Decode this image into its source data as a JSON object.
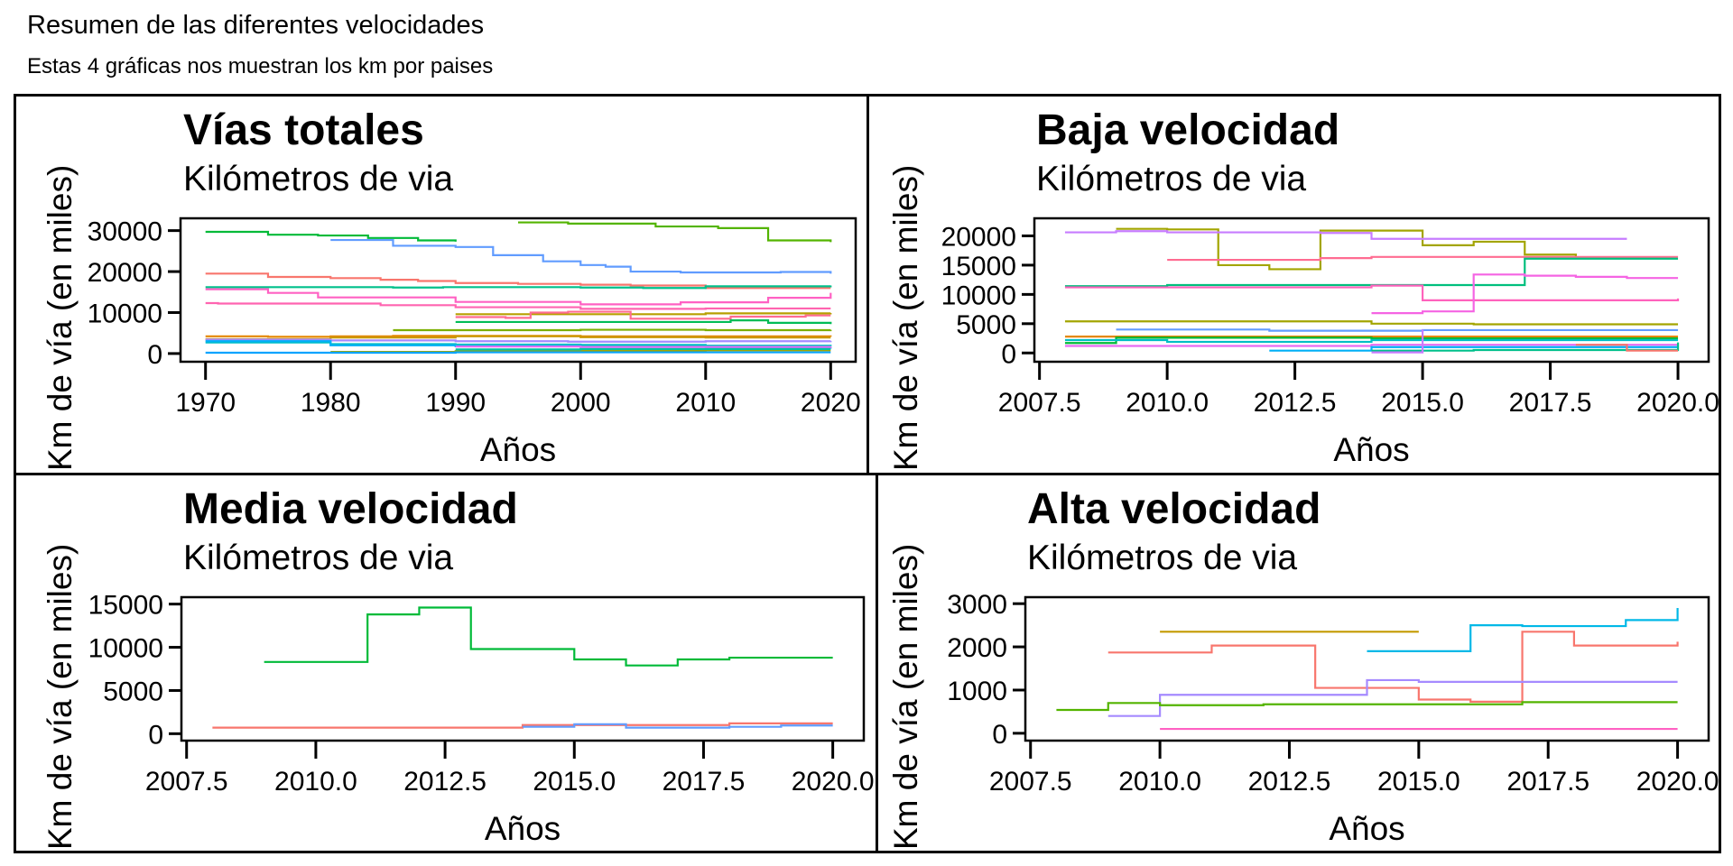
{
  "header": {
    "title": "Resumen de las diferentes velocidades",
    "subtitle": "Estas 4 gráficas nos muestran los km por paises"
  },
  "chart_data": [
    {
      "type": "line",
      "step": true,
      "title": "Vías totales",
      "subtitle": "Kilómetros de via",
      "xlabel": "Años",
      "ylabel": "Km de vía (en miles)",
      "xlim": [
        1968,
        2022
      ],
      "ylim": [
        -2000,
        33000
      ],
      "xticks": [
        1970,
        1980,
        1990,
        2000,
        2010,
        2020
      ],
      "xtick_labels": [
        "1970",
        "1980",
        "1990",
        "2000",
        "2010",
        "2020"
      ],
      "yticks": [
        0,
        10000,
        20000,
        30000
      ],
      "ytick_labels": [
        "0",
        "10000",
        "20000",
        "30000"
      ],
      "legend": "none",
      "series": [
        {
          "color": "#00BA38",
          "x": [
            1970,
            1975,
            1979,
            1983,
            1987,
            1990
          ],
          "y": [
            29700,
            29000,
            28800,
            28200,
            27600,
            27300
          ]
        },
        {
          "color": "#619CFF",
          "x": [
            1980,
            1985,
            1990,
            1993,
            1997,
            2000,
            2002,
            2004,
            2008,
            2016,
            2020
          ],
          "y": [
            27700,
            26300,
            26000,
            24000,
            22500,
            21600,
            21200,
            20000,
            19800,
            19900,
            19500
          ]
        },
        {
          "color": "#53B400",
          "x": [
            1995,
            1999,
            2006,
            2011,
            2015,
            2020
          ],
          "y": [
            32000,
            31700,
            31000,
            30600,
            27600,
            27200
          ]
        },
        {
          "color": "#F8766D",
          "x": [
            1970,
            1975,
            1980,
            1984,
            1987,
            1990,
            1995,
            2000,
            2004,
            2010,
            2020
          ],
          "y": [
            19500,
            18700,
            18400,
            18000,
            17700,
            17200,
            17000,
            16800,
            16600,
            16000,
            16000
          ]
        },
        {
          "color": "#00C08B",
          "x": [
            1970,
            1980,
            1985,
            1989,
            2000,
            2005,
            2010,
            2020
          ],
          "y": [
            16200,
            16200,
            16100,
            16200,
            16100,
            16000,
            16400,
            16600
          ]
        },
        {
          "color": "#FF61C3",
          "x": [
            1970,
            1975,
            1979,
            1990,
            2000,
            2008,
            2015,
            2020
          ],
          "y": [
            15700,
            14800,
            13700,
            12600,
            12000,
            12500,
            13600,
            14800
          ]
        },
        {
          "color": "#FF64B0",
          "x": [
            1970,
            1971,
            1980,
            1984,
            1990,
            2000,
            2010,
            2020
          ],
          "y": [
            12300,
            12200,
            12200,
            11800,
            11300,
            10900,
            11000,
            11000
          ]
        },
        {
          "color": "#B79F00",
          "x": [
            1990,
            2000,
            2010,
            2020
          ],
          "y": [
            9600,
            9600,
            9800,
            9900
          ]
        },
        {
          "color": "#FF6C91",
          "x": [
            1990,
            1994,
            1996,
            1999,
            2004,
            2012,
            2018,
            2020
          ],
          "y": [
            8900,
            8700,
            10000,
            10200,
            8500,
            9000,
            9300,
            9300
          ]
        },
        {
          "color": "#00BC56",
          "x": [
            1990,
            2008,
            2012,
            2015,
            2020
          ],
          "y": [
            7700,
            7700,
            8100,
            7500,
            7200
          ]
        },
        {
          "color": "#7CAE00",
          "x": [
            1985,
            2000,
            2010,
            2020
          ],
          "y": [
            5700,
            5800,
            5700,
            5800
          ]
        },
        {
          "color": "#E58700",
          "x": [
            1970,
            1975,
            1980,
            1985,
            2000,
            2010,
            2020
          ],
          "y": [
            4200,
            4100,
            4200,
            4300,
            4200,
            4200,
            4100
          ]
        },
        {
          "color": "#C99800",
          "x": [
            1970,
            1980,
            1990,
            2000,
            2010,
            2020
          ],
          "y": [
            3500,
            3900,
            4200,
            4000,
            3900,
            3900
          ]
        },
        {
          "color": "#A58AFF",
          "x": [
            1970,
            1980,
            1990,
            1999,
            2010,
            2020
          ],
          "y": [
            3400,
            3200,
            3000,
            2900,
            3000,
            3100
          ]
        },
        {
          "color": "#00BFC4",
          "x": [
            1970,
            1980,
            1990,
            2000,
            2010,
            2020
          ],
          "y": [
            2700,
            2300,
            2200,
            2100,
            1900,
            1800
          ]
        },
        {
          "color": "#00B0F6",
          "x": [
            1970,
            1980,
            1990,
            2000,
            2010,
            2020
          ],
          "y": [
            3000,
            2000,
            1800,
            1600,
            1400,
            1200
          ]
        },
        {
          "color": "#A3A500",
          "x": [
            1980,
            1990,
            2000,
            2010,
            2020
          ],
          "y": [
            400,
            600,
            700,
            800,
            800
          ]
        },
        {
          "color": "#06A4FF",
          "x": [
            1970,
            1980,
            1990,
            2000,
            2010,
            2020
          ],
          "y": [
            200,
            200,
            300,
            300,
            300,
            300
          ]
        },
        {
          "color": "#E76BF3",
          "x": [
            1990,
            2000,
            2010,
            2020
          ],
          "y": [
            1700,
            1600,
            1600,
            1700
          ]
        },
        {
          "color": "#00C1A3",
          "x": [
            1990,
            2000,
            2010,
            2020
          ],
          "y": [
            1000,
            1100,
            1100,
            1100
          ]
        }
      ]
    },
    {
      "type": "line",
      "step": true,
      "title": "Baja velocidad",
      "subtitle": "Kilómetros de via",
      "xlabel": "Años",
      "ylabel": "Km de vía (en miles)",
      "xlim": [
        2007.4,
        2020.6
      ],
      "ylim": [
        -1500,
        23000
      ],
      "xticks": [
        2007.5,
        2010,
        2012.5,
        2015,
        2017.5,
        2020
      ],
      "xtick_labels": [
        "2007.5",
        "2010.0",
        "2012.5",
        "2015.0",
        "2017.5",
        "2020.0"
      ],
      "yticks": [
        0,
        5000,
        10000,
        15000,
        20000
      ],
      "ytick_labels": [
        "0",
        "5000",
        "10000",
        "15000",
        "20000"
      ],
      "legend": "none",
      "series": [
        {
          "color": "#A3A500",
          "x": [
            2009,
            2010,
            2011,
            2012,
            2013,
            2015,
            2016,
            2017,
            2018
          ],
          "y": [
            21200,
            21100,
            15000,
            14300,
            20900,
            18400,
            19000,
            16800,
            16400
          ]
        },
        {
          "color": "#C77CFF",
          "x": [
            2008,
            2009,
            2010,
            2013,
            2014,
            2019
          ],
          "y": [
            20600,
            20800,
            20600,
            20500,
            19500,
            19500
          ]
        },
        {
          "color": "#FF6C91",
          "x": [
            2010,
            2013,
            2014,
            2020
          ],
          "y": [
            15900,
            16200,
            16400,
            16400
          ]
        },
        {
          "color": "#00BF7D",
          "x": [
            2008,
            2010,
            2014,
            2017,
            2020
          ],
          "y": [
            11400,
            11600,
            11600,
            16100,
            16100
          ]
        },
        {
          "color": "#FF62BC",
          "x": [
            2008,
            2014,
            2015,
            2020
          ],
          "y": [
            11200,
            11500,
            9000,
            9300
          ]
        },
        {
          "color": "#F564E3",
          "x": [
            2014,
            2015,
            2016,
            2017,
            2018,
            2019,
            2020
          ],
          "y": [
            6800,
            7100,
            13400,
            13200,
            13000,
            12800,
            12800
          ]
        },
        {
          "color": "#A3A500",
          "x": [
            2008,
            2014,
            2016,
            2020
          ],
          "y": [
            5400,
            5000,
            4900,
            4900
          ]
        },
        {
          "color": "#619CFF",
          "x": [
            2009,
            2012,
            2015,
            2020
          ],
          "y": [
            4000,
            3800,
            3900,
            3900
          ]
        },
        {
          "color": "#E58700",
          "x": [
            2008,
            2020
          ],
          "y": [
            2800,
            2800
          ]
        },
        {
          "color": "#00BA38",
          "x": [
            2008,
            2009,
            2014,
            2020
          ],
          "y": [
            1700,
            2600,
            2500,
            2500
          ]
        },
        {
          "color": "#00BFC4",
          "x": [
            2008,
            2010,
            2014,
            2020
          ],
          "y": [
            2200,
            1900,
            2200,
            2200
          ]
        },
        {
          "color": "#E76BF3",
          "x": [
            2008,
            2014,
            2020
          ],
          "y": [
            1200,
            1400,
            1400
          ]
        },
        {
          "color": "#00B0F6",
          "x": [
            2012,
            2014,
            2015,
            2020
          ],
          "y": [
            400,
            1000,
            1000,
            1000
          ]
        },
        {
          "color": "#00C08B",
          "x": [
            2014,
            2016,
            2019,
            2020
          ],
          "y": [
            400,
            500,
            500,
            1800
          ]
        },
        {
          "color": "#C77CFF",
          "x": [
            2014,
            2015
          ],
          "y": [
            100,
            4000
          ]
        },
        {
          "color": "#F8766D",
          "x": [
            2018,
            2019,
            2020
          ],
          "y": [
            1400,
            400,
            400
          ]
        }
      ]
    },
    {
      "type": "line",
      "step": true,
      "title": "Media velocidad",
      "subtitle": "Kilómetros de via",
      "xlabel": "Años",
      "ylabel": "Km de vía (en miles)",
      "xlim": [
        2007.4,
        2020.6
      ],
      "ylim": [
        -800,
        15800
      ],
      "xticks": [
        2007.5,
        2010,
        2012.5,
        2015,
        2017.5,
        2020
      ],
      "xtick_labels": [
        "2007.5",
        "2010.0",
        "2012.5",
        "2015.0",
        "2017.5",
        "2020.0"
      ],
      "yticks": [
        0,
        5000,
        10000,
        15000
      ],
      "ytick_labels": [
        "0",
        "5000",
        "10000",
        "15000"
      ],
      "legend": "none",
      "series": [
        {
          "color": "#00BA38",
          "x": [
            2009,
            2011,
            2012,
            2013,
            2015,
            2016,
            2017,
            2018,
            2020
          ],
          "y": [
            8300,
            13800,
            14600,
            9800,
            8600,
            7900,
            8600,
            8800,
            8800
          ]
        },
        {
          "color": "#F8766D",
          "x": [
            2008,
            2014,
            2016,
            2018,
            2020
          ],
          "y": [
            700,
            1000,
            1000,
            1200,
            1200
          ]
        },
        {
          "color": "#619CFF",
          "x": [
            2014,
            2015,
            2016,
            2018,
            2019,
            2020
          ],
          "y": [
            800,
            1100,
            700,
            800,
            950,
            950
          ]
        }
      ]
    },
    {
      "type": "line",
      "step": true,
      "title": "Alta velocidad",
      "subtitle": "Kilómetros de via",
      "xlabel": "Años",
      "ylabel": "Km de vía (en miles)",
      "xlim": [
        2007.4,
        2020.6
      ],
      "ylim": [
        -170,
        3150
      ],
      "xticks": [
        2007.5,
        2010,
        2012.5,
        2015,
        2017.5,
        2020
      ],
      "xtick_labels": [
        "2007.5",
        "2010.0",
        "2012.5",
        "2015.0",
        "2017.5",
        "2020.0"
      ],
      "yticks": [
        0,
        1000,
        2000,
        3000
      ],
      "ytick_labels": [
        "0",
        "1000",
        "2000",
        "3000"
      ],
      "legend": "none",
      "series": [
        {
          "color": "#C49A00",
          "x": [
            2010,
            2015
          ],
          "y": [
            2350,
            2350
          ]
        },
        {
          "color": "#00B8E7",
          "x": [
            2014,
            2016,
            2017,
            2019,
            2020,
            2020
          ],
          "y": [
            1900,
            2500,
            2480,
            2620,
            2620,
            2900
          ]
        },
        {
          "color": "#F8766D",
          "x": [
            2009,
            2011,
            2013,
            2015,
            2016,
            2017,
            2018,
            2020,
            2020
          ],
          "y": [
            1870,
            2030,
            1050,
            780,
            730,
            2350,
            2030,
            2030,
            2120
          ]
        },
        {
          "color": "#A58AFF",
          "x": [
            2009,
            2010,
            2014,
            2015,
            2020
          ],
          "y": [
            400,
            890,
            1230,
            1190,
            1190
          ]
        },
        {
          "color": "#53B400",
          "x": [
            2008,
            2009,
            2010,
            2012,
            2017,
            2020
          ],
          "y": [
            540,
            700,
            650,
            670,
            720,
            720
          ]
        },
        {
          "color": "#FF61C3",
          "x": [
            2010,
            2020
          ],
          "y": [
            100,
            100
          ]
        }
      ]
    }
  ]
}
